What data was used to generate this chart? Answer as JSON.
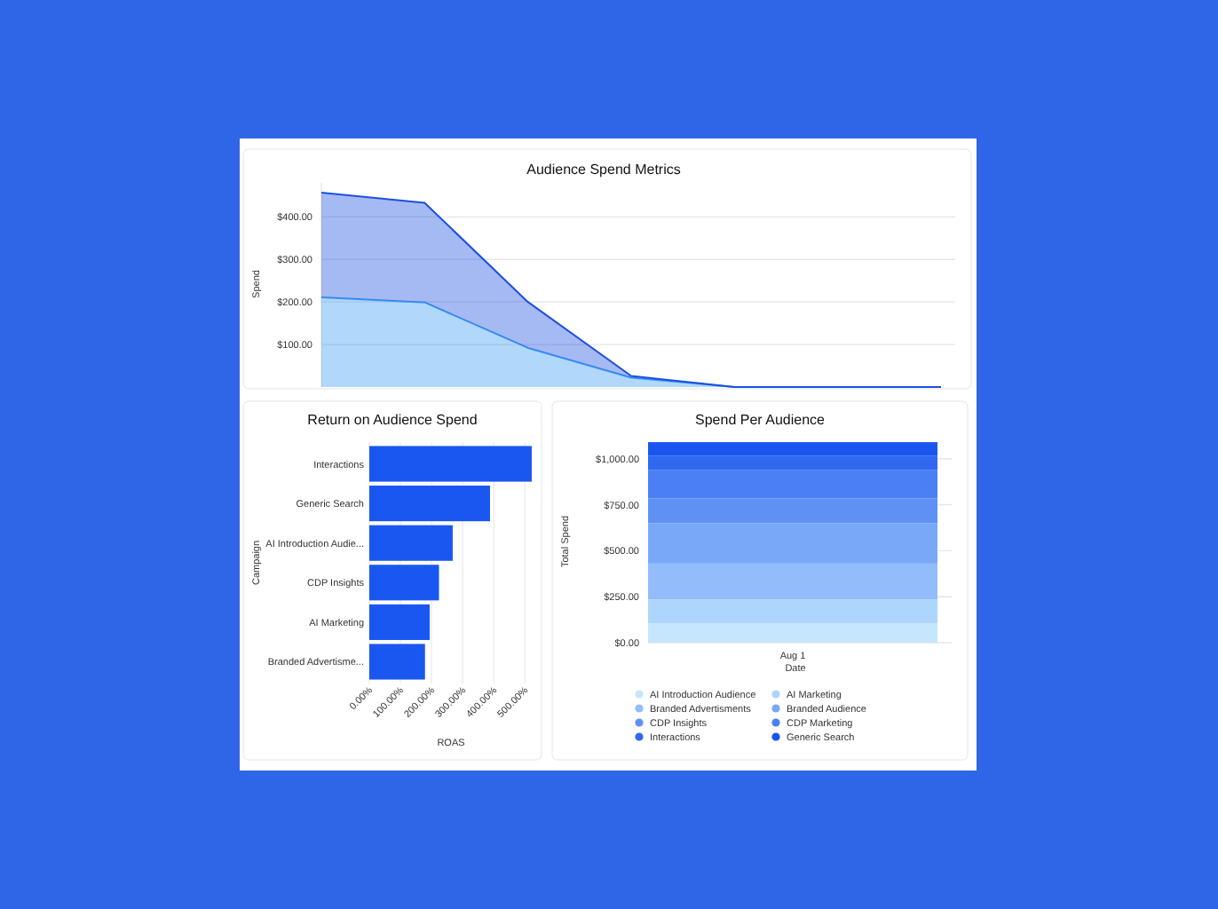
{
  "chart_data": [
    {
      "type": "area",
      "title": "Audience Spend Metrics",
      "ylabel": "Spend",
      "categories": [
        null,
        null,
        null,
        null,
        null,
        null,
        null
      ],
      "stacked": true,
      "series": [
        {
          "color": "#3b9cf5",
          "values": [
            211,
            199,
            92,
            22,
            0,
            0,
            0
          ]
        },
        {
          "color": "#1d4fe0",
          "values": [
            246,
            234,
            108,
            4,
            0,
            0,
            0
          ]
        }
      ],
      "ylim": [
        0,
        480
      ],
      "yticks": [
        {
          "value": 100,
          "label": "$100.00"
        },
        {
          "value": 200,
          "label": "$200.00"
        },
        {
          "value": 300,
          "label": "$300.00"
        },
        {
          "value": 400,
          "label": "$400.00"
        }
      ],
      "grid": "y"
    },
    {
      "type": "bar",
      "orientation": "horizontal",
      "title": "Return on Audience Spend",
      "xlabel": "ROAS",
      "ylabel": "Campaign",
      "categories": [
        "Interactions",
        "Generic Search",
        "AI Introduction Audie...",
        "CDP Insights",
        "AI Marketing",
        "Branded Advertisme..."
      ],
      "values": [
        522,
        388,
        268,
        224,
        194,
        179
      ],
      "color": "#1a56f0",
      "xlim": [
        0,
        525
      ],
      "xticks": [
        {
          "value": 0,
          "label": "0.00%"
        },
        {
          "value": 100,
          "label": "100.00%"
        },
        {
          "value": 200,
          "label": "200.00%"
        },
        {
          "value": 300,
          "label": "300.00%"
        },
        {
          "value": 400,
          "label": "400.00%"
        },
        {
          "value": 500,
          "label": "500.00%"
        }
      ],
      "grid": "x"
    },
    {
      "type": "bar",
      "stacked": true,
      "title": "Spend Per Audience",
      "xlabel": "Date",
      "ylabel": "Total Spend",
      "categories": [
        "Aug 1"
      ],
      "series": [
        {
          "name": "AI Introduction Audience",
          "color": "#c6e6fd",
          "values": [
            105
          ]
        },
        {
          "name": "AI Marketing",
          "color": "#aed5fc",
          "values": [
            130
          ]
        },
        {
          "name": "Branded Advertisments",
          "color": "#93bdfa",
          "values": [
            195
          ]
        },
        {
          "name": "Branded Audience",
          "color": "#7aa8f8",
          "values": [
            220
          ]
        },
        {
          "name": "CDP Insights",
          "color": "#5f91f5",
          "values": [
            135
          ]
        },
        {
          "name": "CDP Marketing",
          "color": "#4a80f3",
          "values": [
            155
          ]
        },
        {
          "name": "Interactions",
          "color": "#3168f0",
          "values": [
            75
          ]
        },
        {
          "name": "Generic Search",
          "color": "#1a56ee",
          "values": [
            75
          ]
        }
      ],
      "ylim": [
        0,
        1100
      ],
      "yticks": [
        {
          "value": 0,
          "label": "$0.00"
        },
        {
          "value": 250,
          "label": "$250.00"
        },
        {
          "value": 500,
          "label": "$500.00"
        },
        {
          "value": 750,
          "label": "$750.00"
        },
        {
          "value": 1000,
          "label": "$1,000.00"
        }
      ],
      "grid": "y",
      "legend": "bottom"
    }
  ]
}
